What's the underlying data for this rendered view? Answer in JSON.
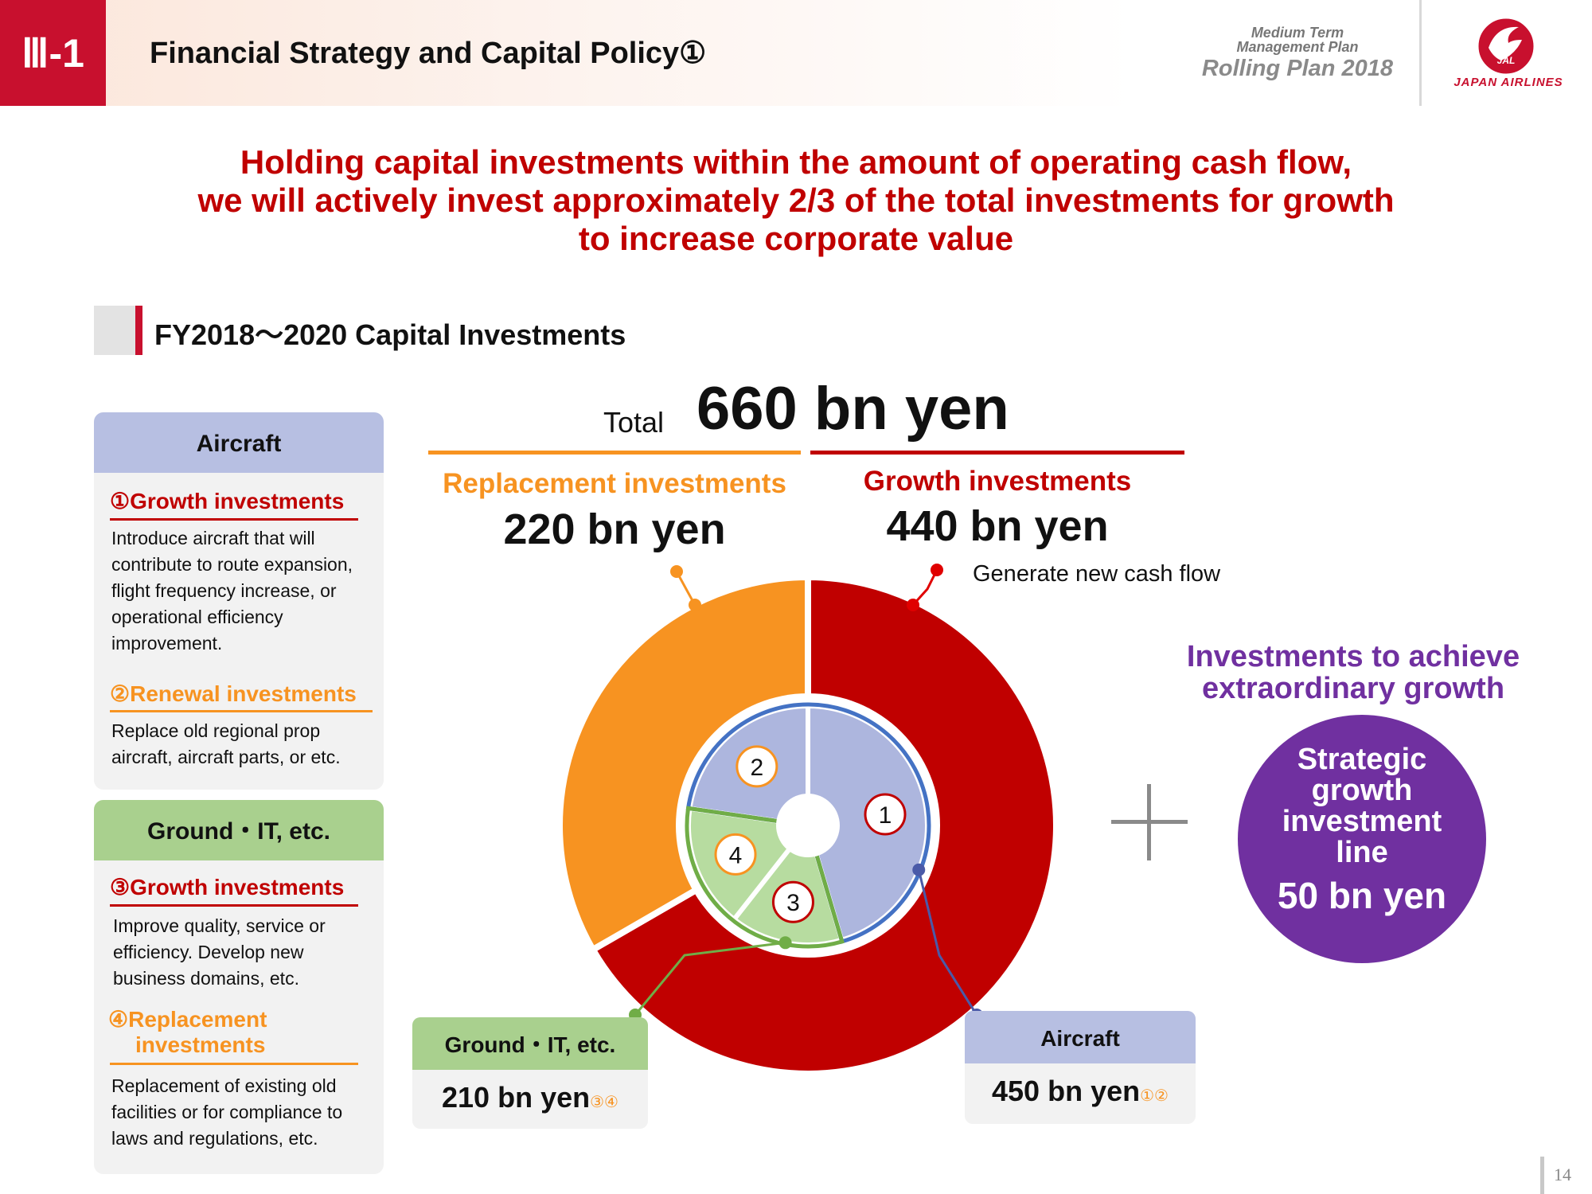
{
  "header": {
    "section_number": "Ⅲ-1",
    "title": "Financial Strategy and Capital Policy①",
    "plan_small_line1": "Medium Term",
    "plan_small_line2": "Management Plan",
    "plan_name": "Rolling Plan 2018",
    "logo_text": "JAPAN AIRLINES",
    "logo_mark": "JAL"
  },
  "headline": {
    "line1": "Holding capital investments within the amount of operating cash flow,",
    "line2": "we will actively invest approximately 2/3 of the total investments for growth",
    "line3": "to increase corporate value"
  },
  "section_title": "FY2018～2020 Capital Investments",
  "aircraft_panel": {
    "heading": "Aircraft",
    "item1_title": "①Growth investments",
    "item1_desc": [
      "Introduce aircraft that will",
      "contribute to route expansion,",
      "flight frequency increase, or",
      "operational efficiency",
      "improvement."
    ],
    "item2_title": "②Renewal investments",
    "item2_desc": [
      "Replace old regional prop",
      "aircraft, aircraft parts, or etc."
    ]
  },
  "ground_panel": {
    "heading": "Ground・IT, etc.",
    "item3_title": "③Growth investments",
    "item3_desc": [
      "Improve quality, service or",
      "efficiency. Develop new",
      "business domains, etc."
    ],
    "item4_title_line1": "④Replacement",
    "item4_title_line2": "investments",
    "item4_desc": [
      "Replacement of existing old",
      "facilities or for compliance to",
      "laws and regulations, etc."
    ]
  },
  "total": {
    "label": "Total",
    "value": "660 bn yen"
  },
  "replacement": {
    "label": "Replacement investments",
    "value": "220 bn yen"
  },
  "growth": {
    "label": "Growth investments",
    "value": "440 bn yen",
    "note": "Generate new cash flow"
  },
  "extraordinary": {
    "label_line1": "Investments to achieve",
    "label_line2": "extraordinary growth",
    "circle_line1": "Strategic",
    "circle_line2": "growth",
    "circle_line3": "investment",
    "circle_line4": "line",
    "circle_value": "50 bn yen"
  },
  "callout_ground": {
    "heading": "Ground・IT, etc.",
    "value": "210 bn yen",
    "refs": "③④"
  },
  "callout_aircraft": {
    "heading": "Aircraft",
    "value": "450 bn yen",
    "refs": "①②"
  },
  "page_number": "14",
  "colors": {
    "brand_red": "#c8102e",
    "growth_red": "#c00000",
    "replacement_orange": "#f79321",
    "aircraft_lavender": "#b7bfe2",
    "ground_green": "#a9d08e",
    "strategic_purple": "#7030a0"
  },
  "chart_data": {
    "type": "pie",
    "outer_ring": {
      "categories": [
        "Replacement investments",
        "Growth investments"
      ],
      "values": [
        220,
        440
      ]
    },
    "inner_ring": {
      "categories": [
        "①",
        "②",
        "④",
        "③"
      ],
      "groups": [
        "Aircraft",
        "Aircraft",
        "Ground・IT, etc.",
        "Ground・IT, etc."
      ],
      "values": [
        300,
        150,
        110,
        100
      ]
    }
  }
}
